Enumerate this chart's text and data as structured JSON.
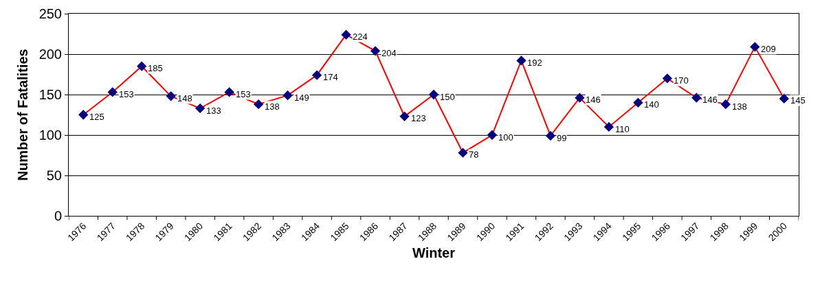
{
  "chart_data": {
    "type": "line",
    "xlabel": "Winter",
    "ylabel": "Number of Fatalities",
    "categories": [
      "1976",
      "1977",
      "1978",
      "1979",
      "1980",
      "1981",
      "1982",
      "1983",
      "1984",
      "1985",
      "1986",
      "1987",
      "1988",
      "1989",
      "1990",
      "1991",
      "1992",
      "1993",
      "1994",
      "1995",
      "1996",
      "1997",
      "1998",
      "1999",
      "2000"
    ],
    "series": [
      {
        "color": "#ff0000",
        "colors": [
          "#000080",
          "#000080",
          "#000080",
          "#000080",
          "#000080",
          "#000080",
          "#000080",
          "#000080",
          "#000080",
          "#000080",
          "#000080",
          "#000080",
          "#000080",
          "#000080",
          "#000080",
          "#000080",
          "#000080",
          "#000080",
          "#000080",
          "#000080",
          "#000080",
          "#000080",
          "#000080",
          "#000080",
          "#000080"
        ],
        "values": [
          125,
          153,
          185,
          148,
          133,
          153,
          138,
          149,
          174,
          224,
          204,
          123,
          150,
          78,
          100,
          192,
          99,
          146,
          110,
          140,
          170,
          146,
          138,
          209,
          145
        ]
      }
    ],
    "ylim": [
      0,
      250
    ],
    "yticks": [
      0,
      50,
      100,
      150,
      200,
      250
    ],
    "grid": "y",
    "marker": "diamond",
    "line_style": "solid",
    "data_labels": true
  }
}
